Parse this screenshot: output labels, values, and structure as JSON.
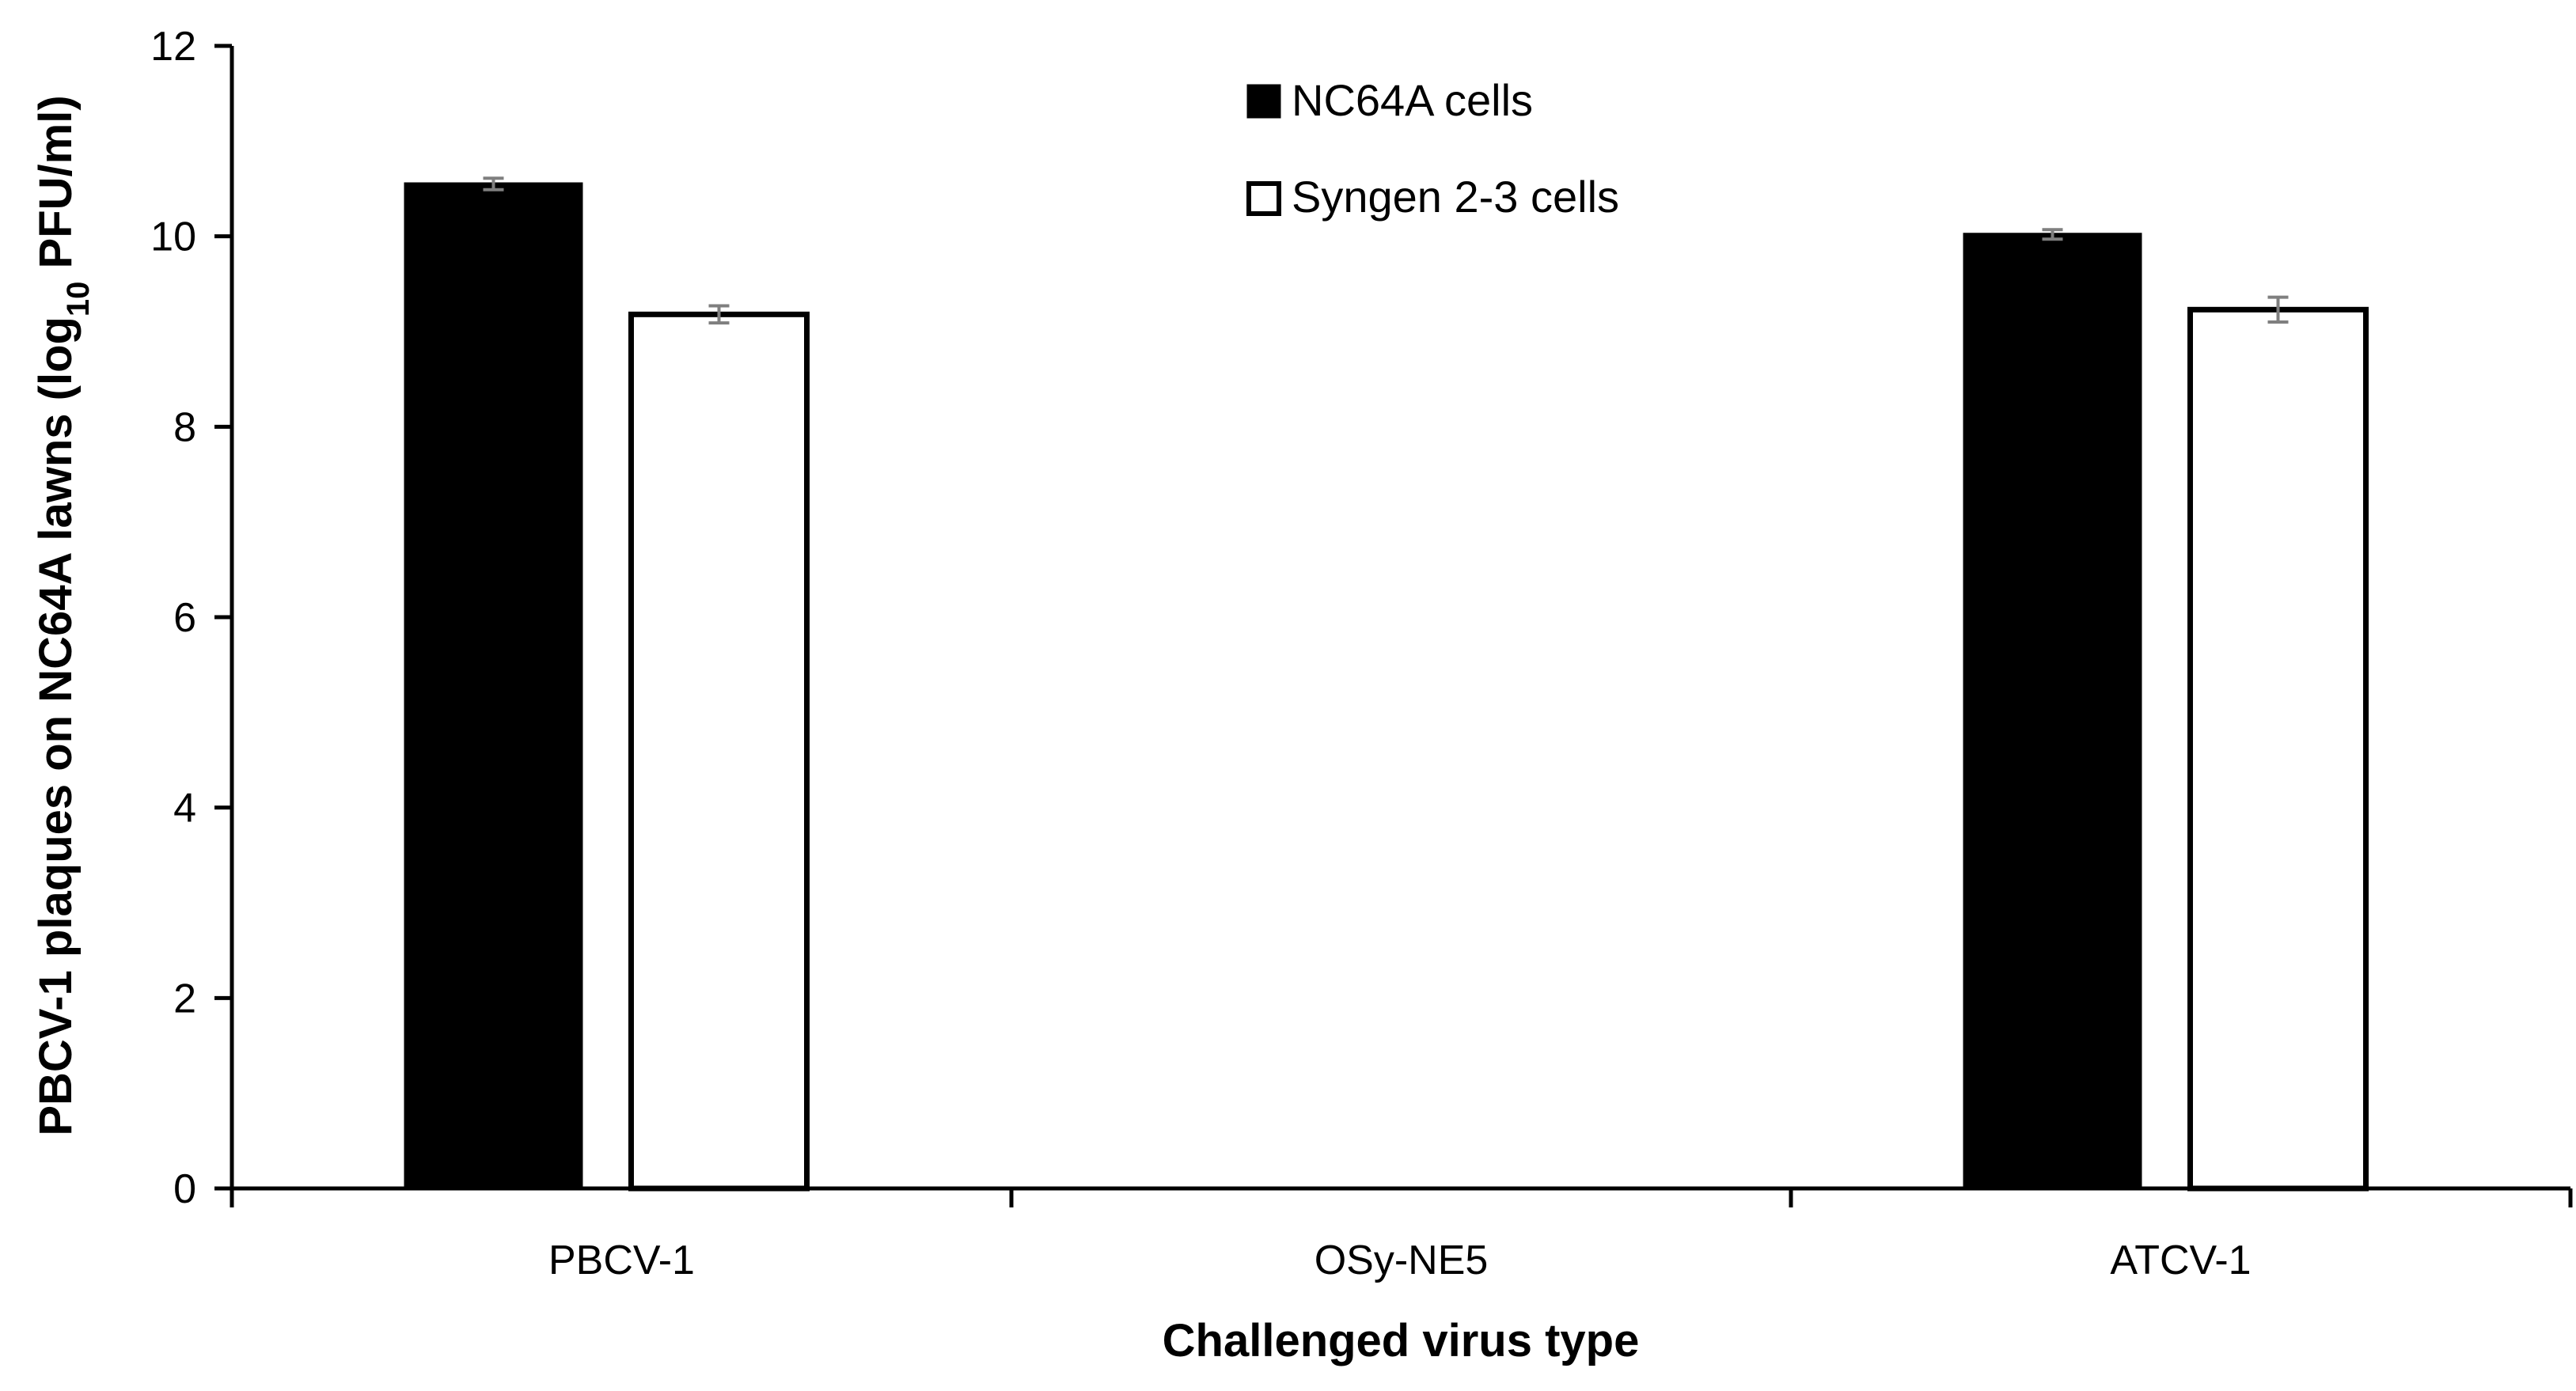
{
  "chart_data": {
    "type": "bar",
    "title": "",
    "xlabel": "Challenged virus type",
    "ylabel": {
      "prefix": "PBCV-1  plaques on NC64A lawns (log",
      "subscript": "10",
      "suffix": " PFU/ml)"
    },
    "ylim": [
      0,
      12
    ],
    "yticks": [
      "0",
      "2",
      "4",
      "6",
      "8",
      "10",
      "12"
    ],
    "grid": false,
    "legend_position": "top-center",
    "categories": [
      "PBCV-1",
      "OSy-NE5",
      "ATCV-1"
    ],
    "series": [
      {
        "name": "NC64A cells",
        "fill": "#000000",
        "stroke": "#000000",
        "values": [
          10.55,
          0,
          10.02
        ],
        "errors": [
          0.06,
          0,
          0.05
        ]
      },
      {
        "name": "Syngen 2-3 cells",
        "fill": "#ffffff",
        "stroke": "#000000",
        "values": [
          9.18,
          0,
          9.23
        ],
        "errors": [
          0.09,
          0,
          0.13
        ]
      }
    ],
    "error_bar_color": "#7f7f7f"
  }
}
